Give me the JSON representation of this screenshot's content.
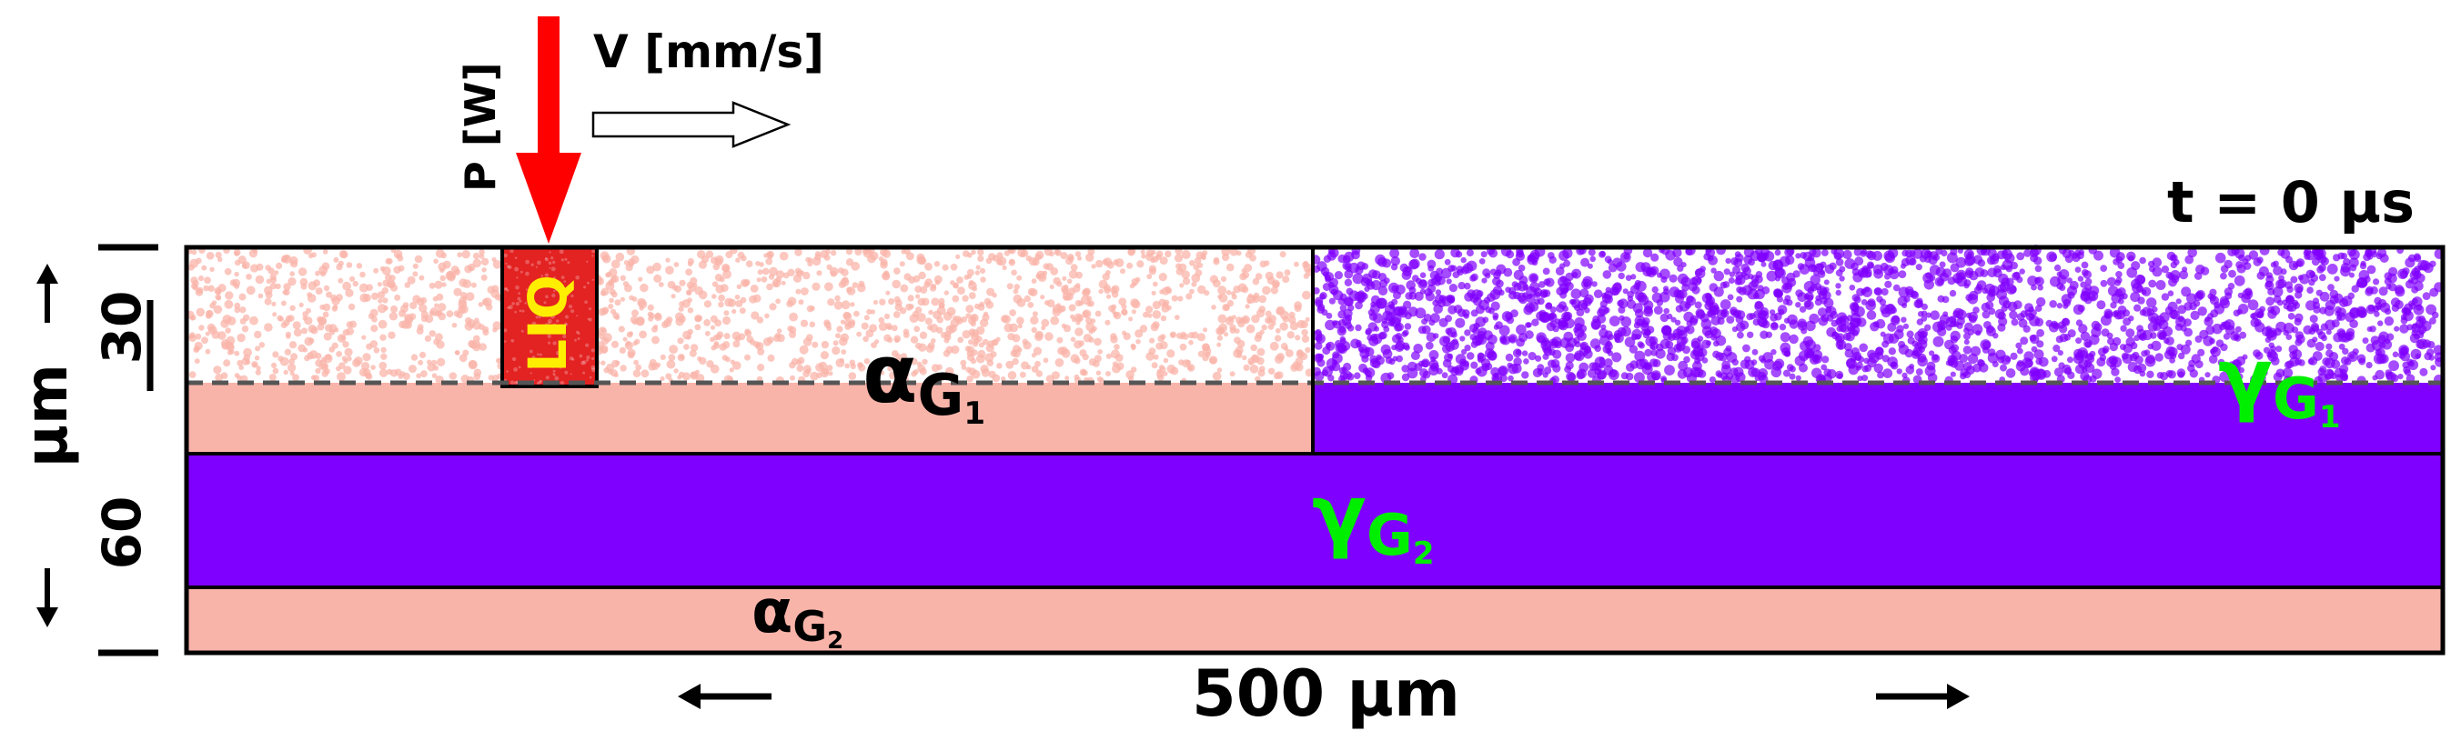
{
  "laser": {
    "power_label": "P [W]",
    "velocity_label": "V [mm/s]"
  },
  "time_label": "t = 0 µs",
  "regions": {
    "liquid_label": "LIQ",
    "alpha_g1": {
      "symbol": "α",
      "subscript": "G",
      "sub_index": "1"
    },
    "gamma_g1": {
      "symbol": "γ",
      "subscript": "G",
      "sub_index": "1"
    },
    "gamma_g2": {
      "symbol": "γ",
      "subscript": "G",
      "sub_index": "2"
    },
    "alpha_g2": {
      "symbol": "α",
      "subscript": "G",
      "sub_index": "2"
    }
  },
  "dimensions": {
    "width_label": "500 µm",
    "depth_top_label": "30",
    "depth_bottom_label": "60",
    "depth_unit_label": "µm"
  },
  "colors": {
    "alpha": "#f9b4aa",
    "gamma": "#8000ff",
    "gamma_label": "#00ee00",
    "liquid": "#ee2222",
    "liquid_label": "#ffee00",
    "laser": "#ff0000"
  }
}
